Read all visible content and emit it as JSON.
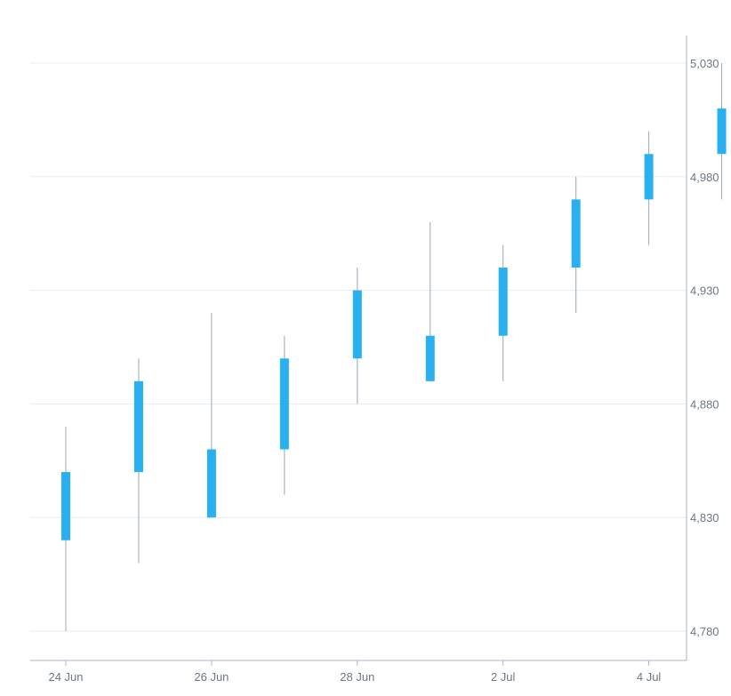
{
  "chart_data": {
    "type": "candlestick",
    "title": "",
    "xlabel": "",
    "ylabel": "",
    "y_axis_position": "right",
    "ylim": [
      4770,
      5043
    ],
    "grid": true,
    "colors": {
      "body": "#29b0f0",
      "wick": "#9aa7b5",
      "grid": "#e6edf3"
    },
    "y_ticks": [
      {
        "value": 4780,
        "label": "4,780"
      },
      {
        "value": 4830,
        "label": "4,830"
      },
      {
        "value": 4880,
        "label": "4,880"
      },
      {
        "value": 4930,
        "label": "4,930"
      },
      {
        "value": 4980,
        "label": "4,980"
      },
      {
        "value": 5030,
        "label": "5,030"
      }
    ],
    "x_ticks": [
      {
        "date": "2024-06-24",
        "label": "24 Jun"
      },
      {
        "date": "2024-06-26",
        "label": "26 Jun"
      },
      {
        "date": "2024-06-28",
        "label": "28 Jun"
      },
      {
        "date": "2024-07-02",
        "label": "2 Jul"
      },
      {
        "date": "2024-07-04",
        "label": "4 Jul"
      }
    ],
    "series": [
      {
        "candles": [
          {
            "date": "2024-06-24",
            "open": 4820,
            "high": 4870,
            "low": 4780,
            "close": 4850
          },
          {
            "date": "2024-06-25",
            "open": 4850,
            "high": 4900,
            "low": 4810,
            "close": 4890
          },
          {
            "date": "2024-06-26",
            "open": 4830,
            "high": 4920,
            "low": 4830,
            "close": 4860
          },
          {
            "date": "2024-06-27",
            "open": 4860,
            "high": 4910,
            "low": 4840,
            "close": 4900
          },
          {
            "date": "2024-06-28",
            "open": 4900,
            "high": 4940,
            "low": 4880,
            "close": 4930
          },
          {
            "date": "2024-07-01",
            "open": 4890,
            "high": 4960,
            "low": 4890,
            "close": 4910
          },
          {
            "date": "2024-07-02",
            "open": 4910,
            "high": 4950,
            "low": 4890,
            "close": 4940
          },
          {
            "date": "2024-07-03",
            "open": 4940,
            "high": 4980,
            "low": 4920,
            "close": 4970
          },
          {
            "date": "2024-07-04",
            "open": 4970,
            "high": 5000,
            "low": 4950,
            "close": 4990
          },
          {
            "date": "2024-07-05",
            "open": 4990,
            "high": 5030,
            "low": 4970,
            "close": 5010
          }
        ]
      }
    ]
  }
}
